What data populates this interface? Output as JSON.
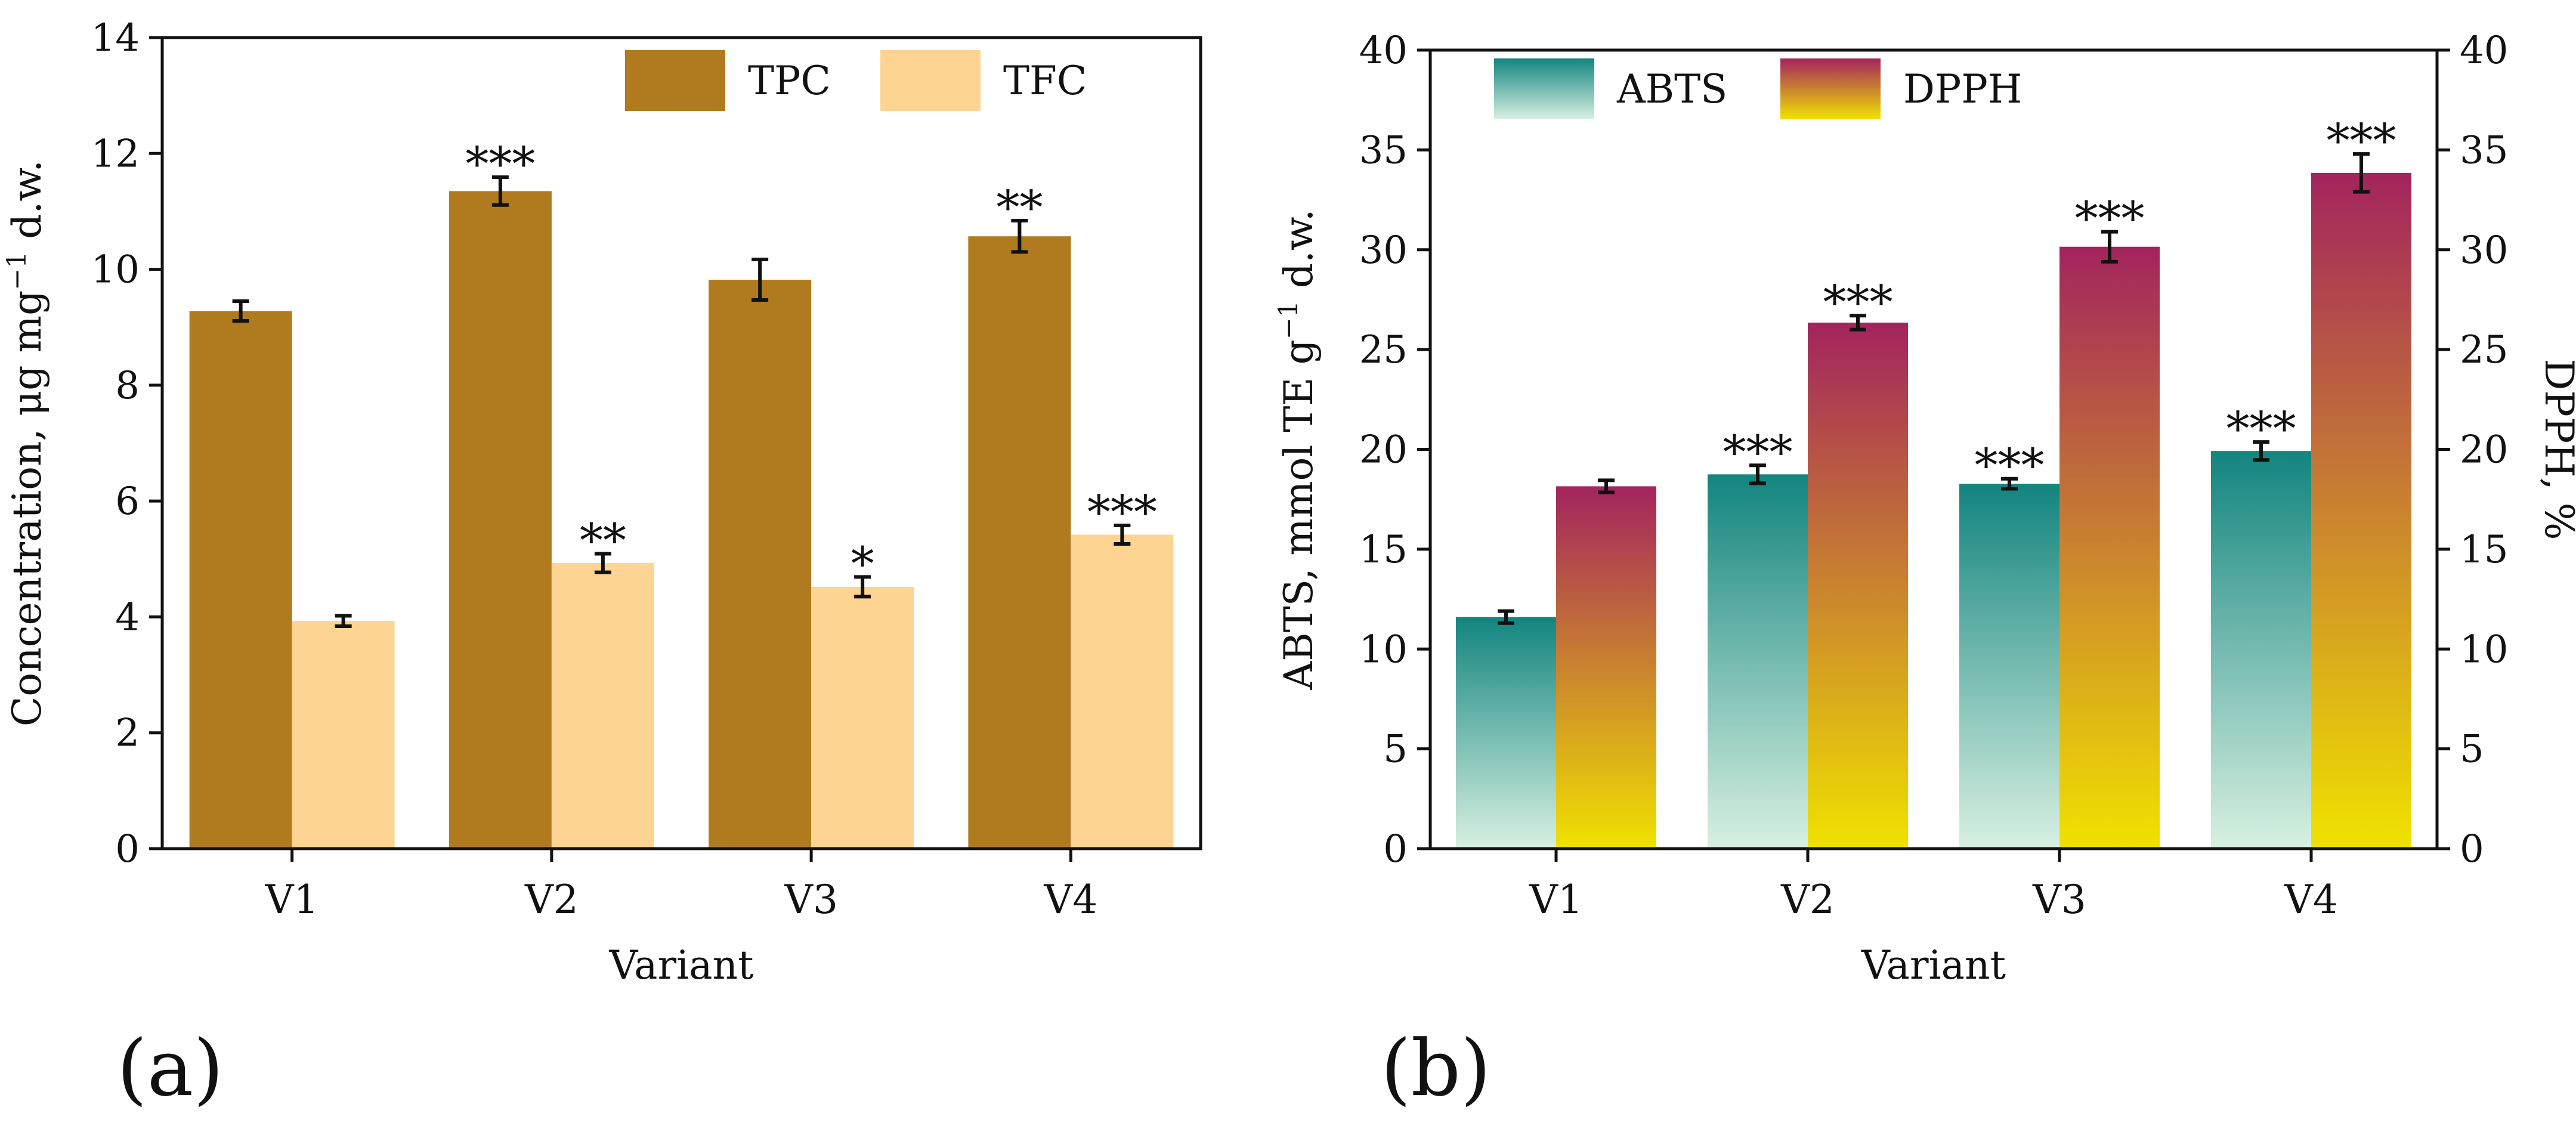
{
  "panel_labels": {
    "a": "(a)",
    "b": "(b)"
  },
  "chart_data": [
    {
      "type": "bar",
      "panel": "a",
      "categories": [
        "V1",
        "V2",
        "V3",
        "V4"
      ],
      "xlabel": "Variant",
      "ylabel_parts": {
        "main": "Concentration, μg mg",
        "sup": "−1",
        "tail": " d.w."
      },
      "ylim": [
        0,
        14
      ],
      "yticks": [
        0,
        2,
        4,
        6,
        8,
        10,
        12,
        14
      ],
      "legend_position": "top-right",
      "series": [
        {
          "name": "TPC",
          "color": "#b07b1f",
          "values": [
            9.28,
            11.35,
            9.82,
            10.57
          ],
          "errors": [
            0.17,
            0.24,
            0.35,
            0.27
          ],
          "significance": [
            "",
            "***",
            "",
            "**"
          ]
        },
        {
          "name": "TFC",
          "color": "#fdd492",
          "values": [
            3.93,
            4.93,
            4.52,
            5.42
          ],
          "errors": [
            0.09,
            0.16,
            0.17,
            0.16
          ],
          "significance": [
            "",
            "**",
            "*",
            "***"
          ]
        }
      ]
    },
    {
      "type": "bar",
      "panel": "b",
      "categories": [
        "V1",
        "V2",
        "V3",
        "V4"
      ],
      "xlabel": "Variant",
      "ylabel_parts": {
        "main": "ABTS, mmol TE g",
        "sup": "−1",
        "tail": " d.w."
      },
      "ylabel_right": "DPPH, %",
      "ylim": [
        0,
        40
      ],
      "ylim_right": [
        0,
        40
      ],
      "yticks": [
        0,
        5,
        10,
        15,
        20,
        25,
        30,
        35,
        40
      ],
      "legend_position": "top-left",
      "series": [
        {
          "name": "ABTS",
          "axis": "left",
          "gradient": [
            "#12857f",
            "#d8f0e1"
          ],
          "values": [
            11.6,
            18.75,
            18.28,
            19.92
          ],
          "errors": [
            0.3,
            0.45,
            0.25,
            0.45
          ],
          "significance": [
            "",
            "***",
            "***",
            "***"
          ]
        },
        {
          "name": "DPPH",
          "axis": "right",
          "gradient": [
            "#a3245e",
            "#f0e200"
          ],
          "values": [
            18.15,
            26.35,
            30.15,
            33.85
          ],
          "errors": [
            0.3,
            0.35,
            0.75,
            0.95
          ],
          "significance": [
            "",
            "***",
            "***",
            "***"
          ]
        }
      ]
    }
  ]
}
